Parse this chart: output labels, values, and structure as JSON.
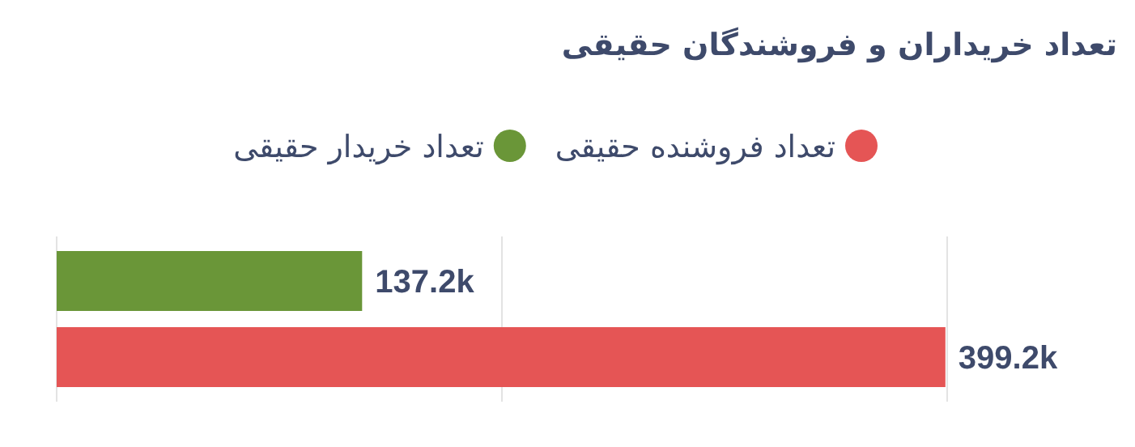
{
  "chart_data": {
    "type": "bar",
    "orientation": "horizontal",
    "title": "تعداد خریداران و فروشندگان حقیقی",
    "categories": [
      null
    ],
    "series": [
      {
        "name": "تعداد خریدار حقیقی",
        "color": "#6a9638",
        "values": [
          137200
        ],
        "value_labels": [
          "137.2k"
        ]
      },
      {
        "name": "تعداد فروشنده حقیقی",
        "color": "#e55555",
        "values": [
          399200
        ],
        "value_labels": [
          "399.2k"
        ]
      }
    ],
    "xlim": [
      0,
      400000
    ],
    "xticks": [
      {
        "value": 0,
        "label": null
      },
      {
        "value": 200000,
        "label": null
      },
      {
        "value": 400000,
        "label": null
      }
    ],
    "grid": "x",
    "legend": "top right"
  }
}
